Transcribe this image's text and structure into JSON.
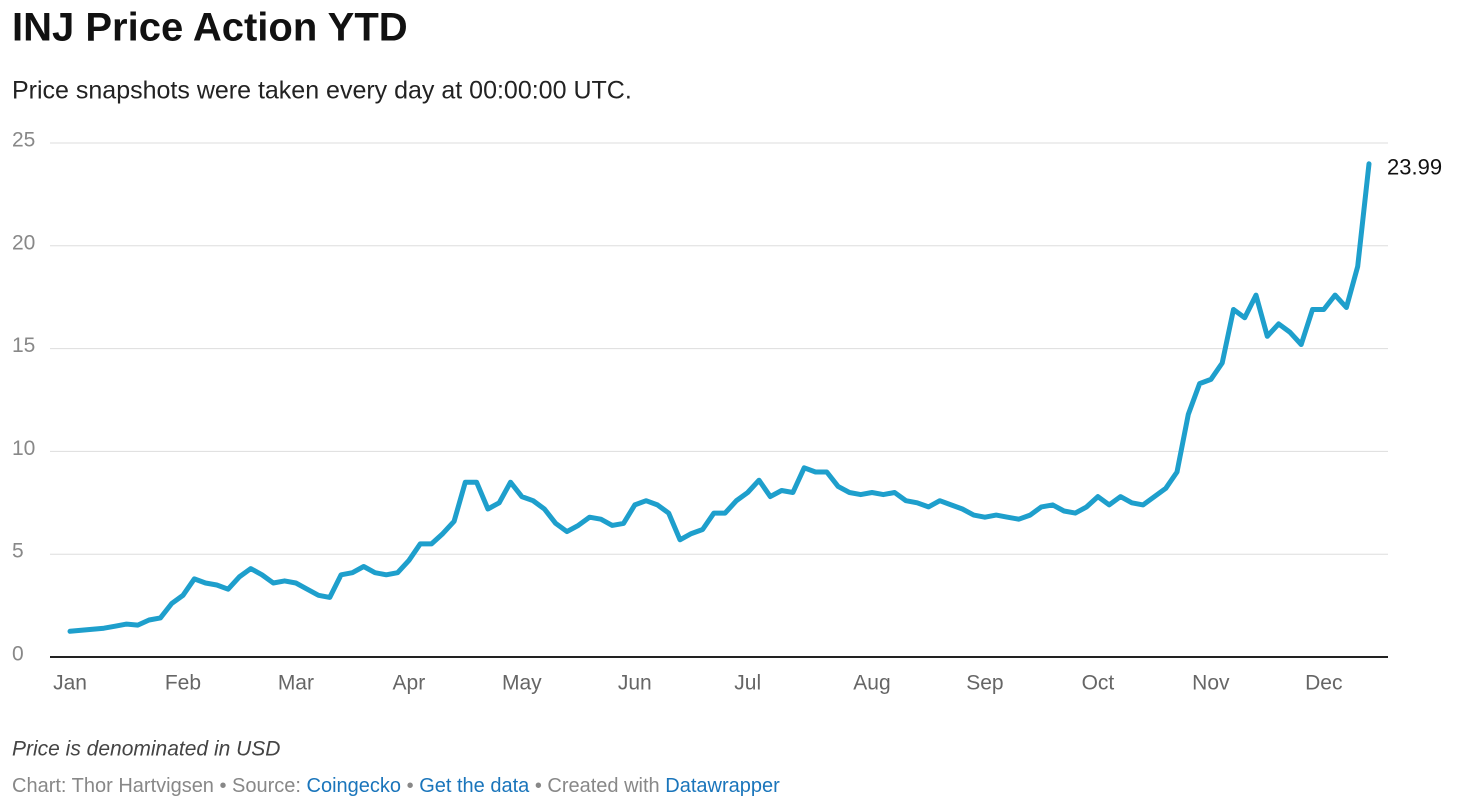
{
  "chart_data": {
    "type": "line",
    "title": "INJ Price Action YTD",
    "subtitle": "Price snapshots were taken every day at 00:00:00 UTC.",
    "notes": "Price is denominated in USD",
    "credits": {
      "prefix": "Chart: Thor Hartvigsen • Source:",
      "source": "Coingecko",
      "separator": "•",
      "get_data": "Get the data",
      "created": "• Created with",
      "tool": "Datawrapper"
    },
    "categories": [
      "Jan",
      null,
      null,
      null,
      null,
      null,
      null,
      null,
      null,
      null,
      "Feb",
      null,
      null,
      null,
      null,
      null,
      null,
      null,
      null,
      null,
      "Mar",
      null,
      null,
      null,
      null,
      null,
      null,
      null,
      null,
      null,
      "Apr",
      null,
      null,
      null,
      null,
      null,
      null,
      null,
      null,
      null,
      "May",
      null,
      null,
      null,
      null,
      null,
      null,
      null,
      null,
      null,
      "Jun",
      null,
      null,
      null,
      null,
      null,
      null,
      null,
      null,
      null,
      "Jul",
      null,
      null,
      null,
      null,
      null,
      null,
      null,
      null,
      null,
      null,
      "Aug",
      null,
      null,
      null,
      null,
      null,
      null,
      null,
      null,
      null,
      "Sep",
      null,
      null,
      null,
      null,
      null,
      null,
      null,
      null,
      null,
      "Oct",
      null,
      null,
      null,
      null,
      null,
      null,
      null,
      null,
      null,
      "Nov",
      null,
      null,
      null,
      null,
      null,
      null,
      null,
      null,
      null,
      "Dec",
      null,
      null,
      null,
      null
    ],
    "series": [
      {
        "name": "INJ",
        "color": "#1e9fcc",
        "values": [
          1.25,
          1.3,
          1.35,
          1.4,
          1.5,
          1.6,
          1.55,
          1.8,
          1.9,
          2.6,
          3.0,
          3.8,
          3.6,
          3.5,
          3.3,
          3.9,
          4.3,
          4.0,
          3.6,
          3.7,
          3.6,
          3.3,
          3.0,
          2.9,
          4.0,
          4.1,
          4.4,
          4.1,
          4.0,
          4.1,
          4.7,
          5.5,
          5.5,
          6.0,
          6.6,
          8.5,
          8.5,
          7.2,
          7.5,
          8.5,
          7.8,
          7.6,
          7.2,
          6.5,
          6.1,
          6.4,
          6.8,
          6.7,
          6.4,
          6.5,
          7.4,
          7.6,
          7.4,
          7.0,
          5.7,
          6.0,
          6.2,
          7.0,
          7.0,
          7.6,
          8.0,
          8.6,
          7.8,
          8.1,
          8.0,
          9.2,
          9.0,
          9.0,
          8.3,
          8.0,
          7.9,
          8.0,
          7.9,
          8.0,
          7.6,
          7.5,
          7.3,
          7.6,
          7.4,
          7.2,
          6.9,
          6.8,
          6.9,
          6.8,
          6.7,
          6.9,
          7.3,
          7.4,
          7.1,
          7.0,
          7.3,
          7.8,
          7.4,
          7.8,
          7.5,
          7.4,
          7.8,
          8.2,
          9.0,
          11.8,
          13.3,
          13.5,
          14.3,
          16.9,
          16.5,
          17.6,
          15.6,
          16.2,
          15.8,
          15.2,
          16.9,
          16.9,
          17.6,
          17.0,
          19.0,
          23.99
        ]
      }
    ],
    "ylim": [
      0,
      25
    ],
    "yticks": [
      0,
      5,
      10,
      15,
      20,
      25
    ],
    "grid": true
  }
}
